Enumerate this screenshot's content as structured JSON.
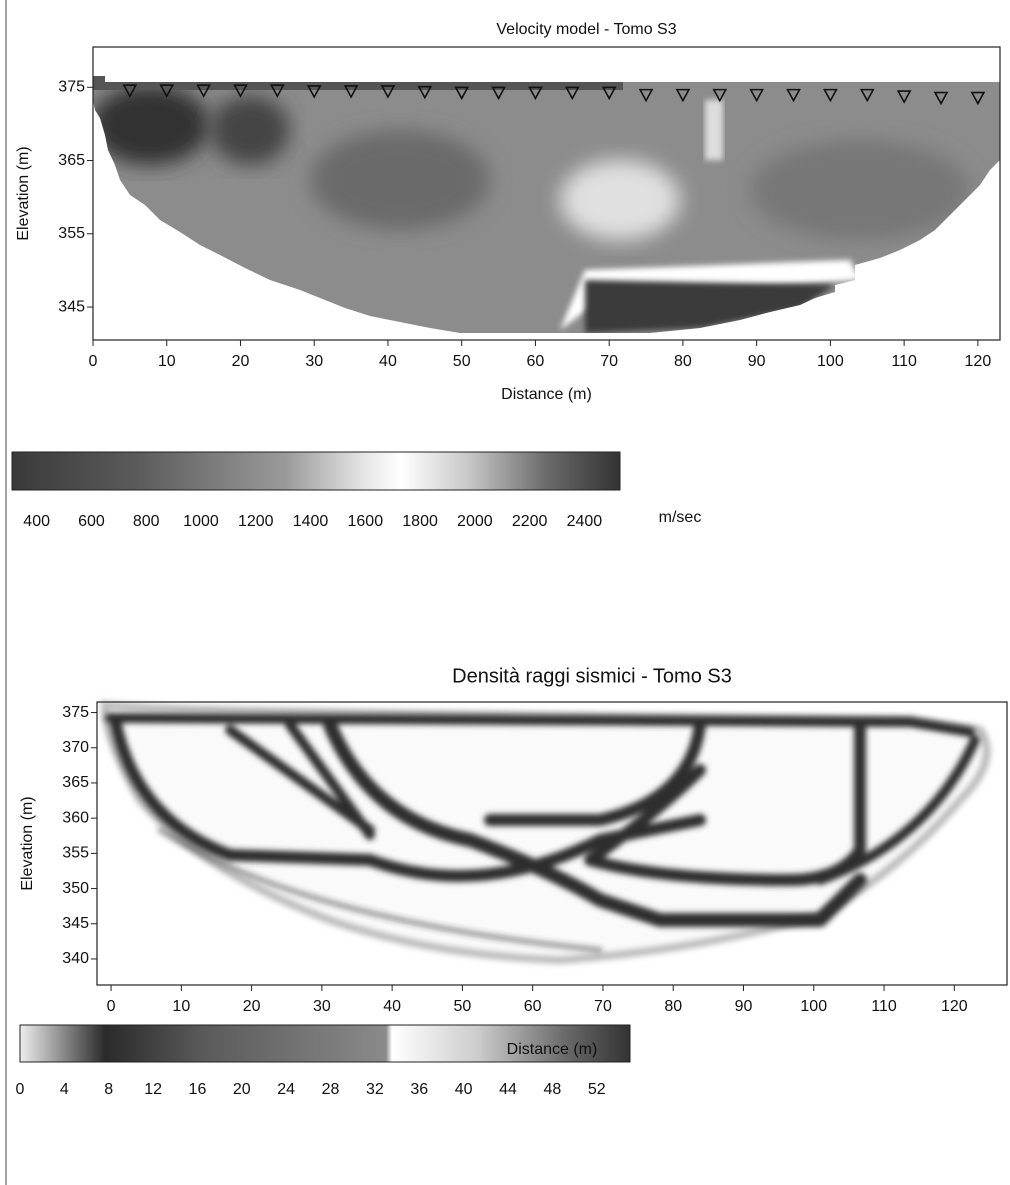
{
  "chart_data": [
    {
      "type": "heatmap",
      "title": "Velocity model - Tomo S3",
      "x_label": "Distance (m)",
      "y_label": "Elevation (m)",
      "xlim": [
        0,
        123
      ],
      "ylim": [
        340.5,
        380.5
      ],
      "xticks": [
        0,
        10,
        20,
        30,
        40,
        50,
        60,
        70,
        80,
        90,
        100,
        110,
        120
      ],
      "yticks": [
        345,
        355,
        365,
        375
      ],
      "sensors": {
        "x": [
          5,
          10,
          15,
          20,
          25,
          30,
          35,
          40,
          45,
          50,
          55,
          60,
          65,
          70,
          75,
          80,
          85,
          90,
          95,
          100,
          105,
          110,
          115,
          120
        ],
        "values": [
          374.6,
          374.6,
          374.6,
          374.6,
          374.6,
          374.5,
          374.5,
          374.5,
          374.4,
          374.3,
          374.3,
          374.3,
          374.3,
          374.3,
          374.0,
          374.0,
          374.0,
          374.0,
          374.0,
          374.0,
          374.0,
          373.8,
          373.6,
          373.6
        ]
      },
      "colorbar": {
        "label": "m/sec",
        "lim": [
          310,
          2530
        ],
        "ticks": [
          400,
          600,
          800,
          1000,
          1200,
          1400,
          1600,
          1800,
          2000,
          2200,
          2400
        ]
      }
    },
    {
      "type": "heatmap",
      "title": "Densità raggi sismici - Tomo S3",
      "x_label": "Distance (m)",
      "y_label": "Elevation (m)",
      "xlim": [
        -2,
        127.5
      ],
      "ylim": [
        336.3,
        376.5
      ],
      "xticks": [
        0,
        10,
        20,
        30,
        40,
        50,
        60,
        70,
        80,
        90,
        100,
        110,
        120
      ],
      "yticks": [
        340,
        345,
        350,
        355,
        360,
        365,
        370,
        375
      ],
      "colorbar": {
        "lim": [
          0,
          55
        ],
        "ticks": [
          0,
          4,
          8,
          12,
          16,
          20,
          24,
          28,
          32,
          36,
          40,
          44,
          48,
          52
        ]
      }
    }
  ]
}
